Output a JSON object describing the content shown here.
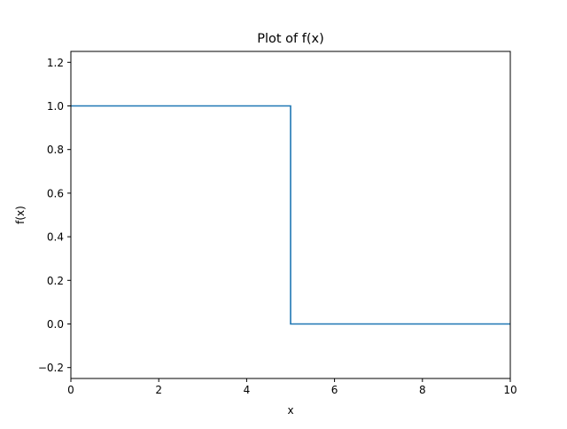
{
  "chart_data": {
    "type": "line",
    "title": "Plot of f(x)",
    "xlabel": "x",
    "ylabel": "f(x)",
    "xlim": [
      0,
      10
    ],
    "ylim": [
      -0.25,
      1.25
    ],
    "xticks": [
      0,
      2,
      4,
      6,
      8,
      10
    ],
    "xtick_labels": [
      "0",
      "2",
      "4",
      "6",
      "8",
      "10"
    ],
    "yticks": [
      -0.2,
      0.0,
      0.2,
      0.4,
      0.6,
      0.8,
      1.0,
      1.2
    ],
    "ytick_labels": [
      "−0.2",
      "0.0",
      "0.2",
      "0.4",
      "0.6",
      "0.8",
      "1.0",
      "1.2"
    ],
    "grid": false,
    "series": [
      {
        "color": "#1f77b4",
        "x": [
          0,
          5,
          5,
          10
        ],
        "y": [
          1,
          1,
          0,
          0
        ]
      }
    ]
  }
}
